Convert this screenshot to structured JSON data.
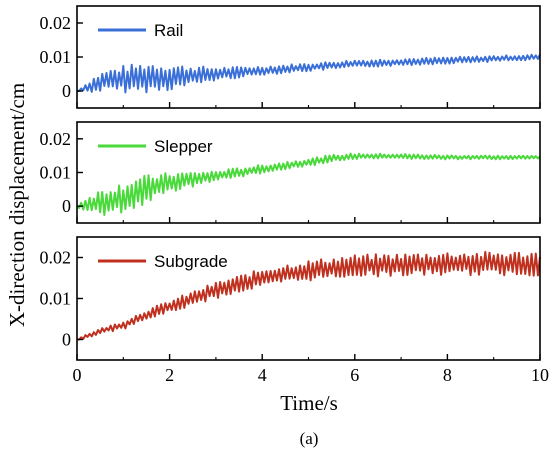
{
  "chart_data": {
    "type": "line",
    "ylabel": "X-direction displacement/cm",
    "xlabel": "Time/s",
    "caption": "(a)",
    "x_range": [
      0,
      10
    ],
    "x_ticks": [
      0,
      2,
      4,
      6,
      8,
      10
    ],
    "grid": false,
    "legend_placement": "top-left",
    "panels": [
      {
        "name": "Rail",
        "color": "#3a6fd8",
        "ylim": [
          -0.005,
          0.025
        ],
        "yticks": [
          0,
          0.01,
          0.02
        ],
        "ytick_labels": [
          "0",
          "0.01",
          "0.02"
        ],
        "series": [
          {
            "x": 0.0,
            "y": 0.0
          },
          {
            "x": 0.3,
            "y": 0.0015
          },
          {
            "x": 0.6,
            "y": 0.003
          },
          {
            "x": 1.0,
            "y": 0.0035
          },
          {
            "x": 1.5,
            "y": 0.004
          },
          {
            "x": 2.0,
            "y": 0.004
          },
          {
            "x": 2.5,
            "y": 0.0045
          },
          {
            "x": 3.0,
            "y": 0.005
          },
          {
            "x": 3.5,
            "y": 0.0055
          },
          {
            "x": 4.0,
            "y": 0.006
          },
          {
            "x": 5.0,
            "y": 0.007
          },
          {
            "x": 6.0,
            "y": 0.008
          },
          {
            "x": 7.0,
            "y": 0.0085
          },
          {
            "x": 8.0,
            "y": 0.009
          },
          {
            "x": 9.0,
            "y": 0.0095
          },
          {
            "x": 10.0,
            "y": 0.01
          }
        ],
        "amplitude": [
          {
            "x": 0.0,
            "a": 0.0
          },
          {
            "x": 0.4,
            "a": 0.0025
          },
          {
            "x": 1.0,
            "a": 0.004
          },
          {
            "x": 1.6,
            "a": 0.0045
          },
          {
            "x": 2.2,
            "a": 0.0035
          },
          {
            "x": 3.0,
            "a": 0.002
          },
          {
            "x": 4.0,
            "a": 0.0013
          },
          {
            "x": 10.0,
            "a": 0.0008
          }
        ]
      },
      {
        "name": "Slepper",
        "color": "#49d93a",
        "ylim": [
          -0.005,
          0.025
        ],
        "yticks": [
          0,
          0.01,
          0.02
        ],
        "ytick_labels": [
          "0",
          "0.01",
          "0.02"
        ],
        "series": [
          {
            "x": 0.0,
            "y": 0.0
          },
          {
            "x": 0.5,
            "y": 0.001
          },
          {
            "x": 1.0,
            "y": 0.0025
          },
          {
            "x": 1.5,
            "y": 0.005
          },
          {
            "x": 2.0,
            "y": 0.007
          },
          {
            "x": 2.5,
            "y": 0.008
          },
          {
            "x": 3.0,
            "y": 0.009
          },
          {
            "x": 3.5,
            "y": 0.01
          },
          {
            "x": 4.0,
            "y": 0.011
          },
          {
            "x": 4.5,
            "y": 0.012
          },
          {
            "x": 5.0,
            "y": 0.013
          },
          {
            "x": 5.5,
            "y": 0.0142
          },
          {
            "x": 6.0,
            "y": 0.0148
          },
          {
            "x": 7.0,
            "y": 0.0148
          },
          {
            "x": 8.0,
            "y": 0.0145
          },
          {
            "x": 10.0,
            "y": 0.0145
          }
        ],
        "amplitude": [
          {
            "x": 0.0,
            "a": 0.001
          },
          {
            "x": 0.5,
            "a": 0.004
          },
          {
            "x": 1.2,
            "a": 0.005
          },
          {
            "x": 2.0,
            "a": 0.003
          },
          {
            "x": 3.0,
            "a": 0.0015
          },
          {
            "x": 5.0,
            "a": 0.0012
          },
          {
            "x": 6.5,
            "a": 0.0008
          },
          {
            "x": 10.0,
            "a": 0.0005
          }
        ]
      },
      {
        "name": "Subgrade",
        "color": "#c0301f",
        "ylim": [
          -0.005,
          0.025
        ],
        "yticks": [
          0,
          0.01,
          0.02
        ],
        "ytick_labels": [
          "0",
          "0.01",
          "0.02"
        ],
        "series": [
          {
            "x": 0.0,
            "y": 0.0
          },
          {
            "x": 0.5,
            "y": 0.002
          },
          {
            "x": 1.0,
            "y": 0.0035
          },
          {
            "x": 1.5,
            "y": 0.006
          },
          {
            "x": 2.0,
            "y": 0.008
          },
          {
            "x": 2.5,
            "y": 0.01
          },
          {
            "x": 3.0,
            "y": 0.012
          },
          {
            "x": 3.5,
            "y": 0.0135
          },
          {
            "x": 4.0,
            "y": 0.015
          },
          {
            "x": 4.5,
            "y": 0.016
          },
          {
            "x": 5.0,
            "y": 0.0168
          },
          {
            "x": 6.0,
            "y": 0.018
          },
          {
            "x": 7.0,
            "y": 0.0182
          },
          {
            "x": 8.0,
            "y": 0.0185
          },
          {
            "x": 9.0,
            "y": 0.0185
          },
          {
            "x": 10.0,
            "y": 0.0185
          }
        ],
        "amplitude": [
          {
            "x": 0.0,
            "a": 0.0003
          },
          {
            "x": 1.0,
            "a": 0.001
          },
          {
            "x": 2.0,
            "a": 0.0015
          },
          {
            "x": 3.0,
            "a": 0.002
          },
          {
            "x": 5.0,
            "a": 0.0025
          },
          {
            "x": 7.0,
            "a": 0.0028
          },
          {
            "x": 10.0,
            "a": 0.003
          }
        ]
      }
    ]
  }
}
